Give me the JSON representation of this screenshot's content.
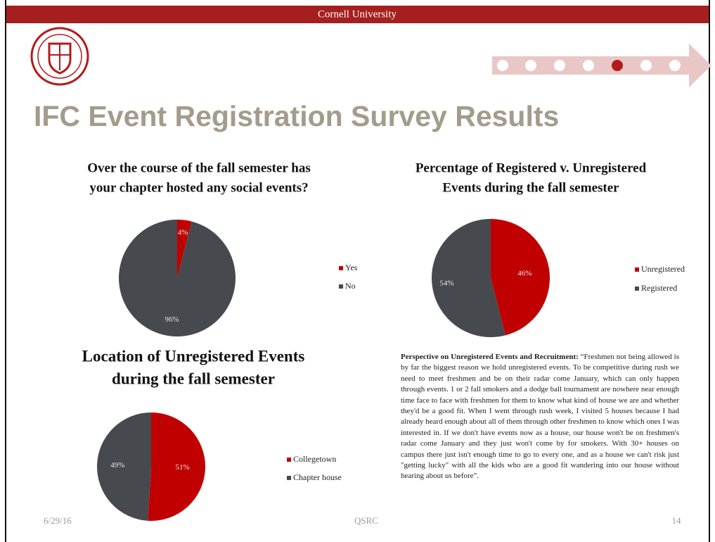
{
  "header": "Cornell University",
  "title": "IFC Event Registration Survey Results",
  "chart_data": [
    {
      "type": "pie",
      "title": [
        "Over the course of the fall semester has",
        "your chapter hosted any social events?"
      ],
      "categories": [
        "Yes",
        "No"
      ],
      "values": [
        4,
        96
      ],
      "value_labels": [
        "4%",
        "96%"
      ],
      "colors": [
        "#c00000",
        "#46494e"
      ]
    },
    {
      "type": "pie",
      "title": [
        "Percentage of Registered v. Unregistered",
        "Events during the fall semester"
      ],
      "categories": [
        "Unregistered",
        "Registered"
      ],
      "values": [
        46,
        54
      ],
      "value_labels": [
        "46%",
        "54%"
      ],
      "colors": [
        "#c00000",
        "#46494e"
      ]
    },
    {
      "type": "pie",
      "title": [
        "Location of Unregistered Events",
        "during the fall semester"
      ],
      "categories": [
        "Collegetown",
        "Chapter house"
      ],
      "values": [
        51,
        49
      ],
      "value_labels": [
        "51%",
        "49%"
      ],
      "colors": [
        "#c00000",
        "#46494e"
      ]
    }
  ],
  "quote": {
    "lead": "Perspective on Unregistered Events and Recruitment:",
    "text": "“Freshmen not being allowed is by far the biggest reason we hold unregistered events. To be competitive during rush we need to meet freshmen and be on their radar come January, which can only happen through events. 1 or 2 fall smokers and a dodge ball tournament are nowhere near enough time face to face with freshmen for them to know what kind of house we are and whether they'd be a good fit. When I went through rush week, I visited 5 houses because I had already heard enough about all of them through other freshmen to know which ones I was interested in. If we don't have events now as a house, our house won't be on freshmen's radar come January and they just won't come by for smokers. With 30+ houses on campus there just isn't enough time to go to every one, and as a house we can't risk just \"getting lucky\" with all the kids who are a good fit wandering into our house without hearing about us before”."
  },
  "footer": {
    "date": "6/29/16",
    "org": "QSRC",
    "page": "14"
  }
}
